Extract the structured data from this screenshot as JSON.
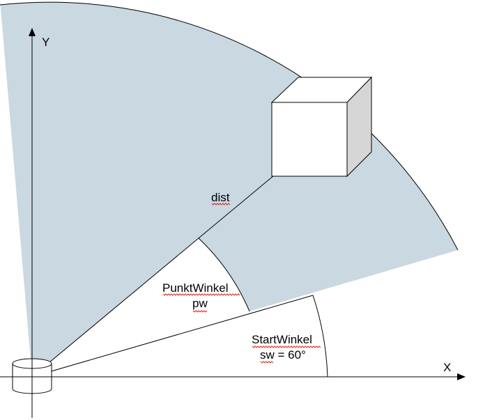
{
  "axes": {
    "x_label": "X",
    "y_label": "Y"
  },
  "labels": {
    "dist": "dist",
    "point_angle_name": "PunktWinkel",
    "point_angle_symbol": "pw",
    "start_angle_name": "StartWinkel",
    "start_angle_value": "sw = 60°"
  },
  "colors": {
    "sector_fill": "#c9d8e1",
    "outline": "#000000",
    "cube_front": "#ffffff",
    "cube_top": "#ffffff",
    "cube_side": "#d6d6d6",
    "spellcheck": "#e0241b"
  },
  "icons": {
    "sensor": "cylinder-sensor-icon",
    "object": "cube-icon"
  }
}
